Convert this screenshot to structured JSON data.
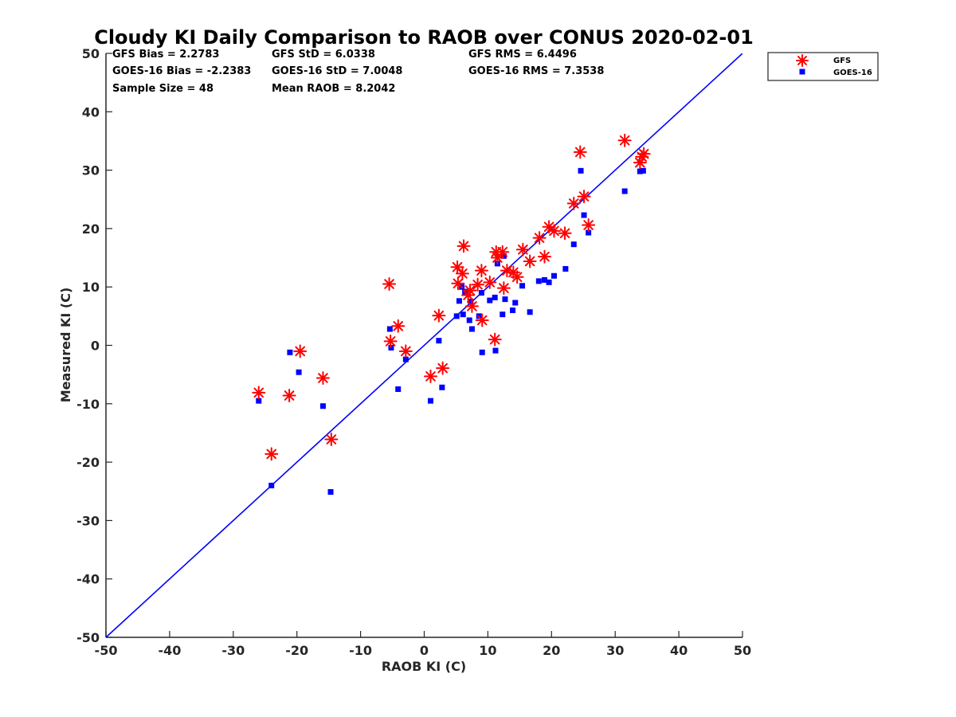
{
  "chart_data": {
    "type": "scatter",
    "title": "Cloudy KI Daily Comparison to RAOB over CONUS 2020-02-01",
    "xlabel": "RAOB KI (C)",
    "ylabel": "Measured KI (C)",
    "xlim": [
      -50,
      50
    ],
    "ylim": [
      -50,
      50
    ],
    "xticks": [
      "-50",
      "-40",
      "-30",
      "-20",
      "-10",
      "0",
      "10",
      "20",
      "30",
      "40",
      "50"
    ],
    "yticks": [
      "-50",
      "-40",
      "-30",
      "-20",
      "-10",
      "0",
      "10",
      "20",
      "30",
      "40",
      "50"
    ],
    "grid": false,
    "legend_position": "top-right outside",
    "reference_line": {
      "from": [
        -50,
        -50
      ],
      "to": [
        50,
        50
      ],
      "color": "#0000ff"
    },
    "stats": {
      "gfs_bias": "GFS Bias = 2.2783",
      "gfs_std": "GFS StD = 6.0338",
      "gfs_rms": "GFS RMS = 6.4496",
      "goes_bias": "GOES-16 Bias = -2.2383",
      "goes_std": "GOES-16 StD = 7.0048",
      "goes_rms": "GOES-16 RMS = 7.3538",
      "sample_size": "Sample Size = 48",
      "mean_raob": "Mean RAOB = 8.2042"
    },
    "series": [
      {
        "name": "GFS",
        "marker": "asterisk",
        "color": "#ff0000",
        "points": [
          [
            -26,
            -8.1
          ],
          [
            -24,
            -18.6
          ],
          [
            -21.2,
            -8.6
          ],
          [
            -19.5,
            -1
          ],
          [
            -15.9,
            -5.6
          ],
          [
            -14.6,
            -16.1
          ],
          [
            -5.5,
            10.5
          ],
          [
            -5.3,
            0.7
          ],
          [
            -4.1,
            3.3
          ],
          [
            -2.9,
            -1
          ],
          [
            1,
            -5.3
          ],
          [
            2.3,
            5.1
          ],
          [
            2.9,
            -3.9
          ],
          [
            5.2,
            13.4
          ],
          [
            5.3,
            10.6
          ],
          [
            6,
            12.3
          ],
          [
            6.2,
            17
          ],
          [
            6.9,
            8.6
          ],
          [
            7.2,
            9.4
          ],
          [
            7.5,
            6.7
          ],
          [
            8.4,
            10.4
          ],
          [
            9,
            12.8
          ],
          [
            9.1,
            4.3
          ],
          [
            10.3,
            10.8
          ],
          [
            11.1,
            1
          ],
          [
            11.3,
            16
          ],
          [
            11.5,
            15
          ],
          [
            12.3,
            16
          ],
          [
            12.5,
            9.8
          ],
          [
            13,
            12.8
          ],
          [
            14,
            12.5
          ],
          [
            14.6,
            11.7
          ],
          [
            15.5,
            16.4
          ],
          [
            16.6,
            14.4
          ],
          [
            18.1,
            18.4
          ],
          [
            18.9,
            15.2
          ],
          [
            19.6,
            20.3
          ],
          [
            20.4,
            19.6
          ],
          [
            22.1,
            19.2
          ],
          [
            23.5,
            24.3
          ],
          [
            24.5,
            33.1
          ],
          [
            25.1,
            25.5
          ],
          [
            25.8,
            20.6
          ],
          [
            31.5,
            35.1
          ],
          [
            33.9,
            31.3
          ],
          [
            34.2,
            32.3
          ],
          [
            34.5,
            32.8
          ]
        ]
      },
      {
        "name": "GOES-16",
        "marker": "square",
        "color": "#0000ff",
        "points": [
          [
            -26,
            -9.5
          ],
          [
            -24,
            -24
          ],
          [
            -21.1,
            -1.2
          ],
          [
            -19.7,
            -4.6
          ],
          [
            -15.9,
            -10.4
          ],
          [
            -14.7,
            -25.1
          ],
          [
            -5.4,
            2.8
          ],
          [
            -5.2,
            -0.4
          ],
          [
            -4.1,
            -7.5
          ],
          [
            -2.9,
            -2.4
          ],
          [
            1,
            -9.5
          ],
          [
            2.3,
            0.8
          ],
          [
            2.8,
            -7.2
          ],
          [
            5.1,
            5
          ],
          [
            5.5,
            7.6
          ],
          [
            5.9,
            10
          ],
          [
            6.1,
            5.3
          ],
          [
            6.4,
            9.2
          ],
          [
            7.1,
            4.3
          ],
          [
            7.3,
            7.5
          ],
          [
            7.5,
            2.8
          ],
          [
            8.6,
            5
          ],
          [
            9,
            9
          ],
          [
            9.1,
            -1.2
          ],
          [
            10.3,
            7.7
          ],
          [
            11.1,
            8.2
          ],
          [
            11.2,
            -0.9
          ],
          [
            11.5,
            14
          ],
          [
            12.3,
            5.3
          ],
          [
            12.5,
            15.3
          ],
          [
            12.7,
            7.9
          ],
          [
            13.9,
            6
          ],
          [
            14.3,
            7.3
          ],
          [
            15.4,
            10.2
          ],
          [
            16.6,
            5.7
          ],
          [
            18,
            11
          ],
          [
            18.9,
            11.2
          ],
          [
            19.6,
            10.8
          ],
          [
            20.4,
            11.9
          ],
          [
            22.2,
            13.1
          ],
          [
            23.5,
            17.3
          ],
          [
            24.6,
            29.9
          ],
          [
            25.1,
            22.3
          ],
          [
            25.8,
            19.3
          ],
          [
            31.5,
            26.4
          ],
          [
            33.9,
            29.8
          ],
          [
            34.4,
            29.9
          ]
        ]
      }
    ]
  }
}
